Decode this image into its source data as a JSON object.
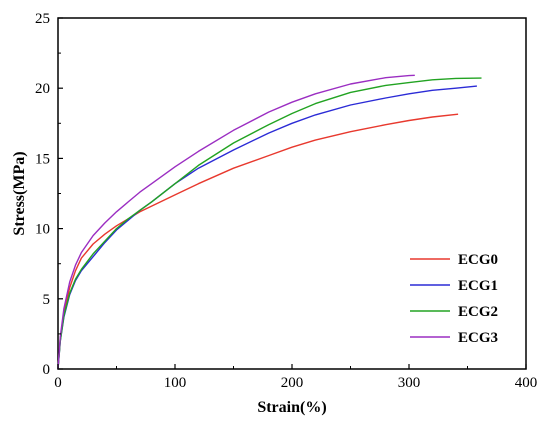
{
  "chart_data": {
    "type": "line",
    "xlabel": "Strain(%)",
    "ylabel": "Stress(MPa)",
    "xlim": [
      0,
      400
    ],
    "ylim": [
      0,
      25
    ],
    "xticks": [
      0,
      100,
      200,
      300,
      400
    ],
    "yticks": [
      0,
      5,
      10,
      15,
      20,
      25
    ],
    "grid": false,
    "legend_position": "bottom-right",
    "series": [
      {
        "name": "ECG0",
        "color": "#e8392e",
        "x": [
          0,
          2,
          5,
          10,
          15,
          20,
          30,
          40,
          50,
          60,
          70,
          80,
          100,
          120,
          150,
          180,
          200,
          220,
          250,
          280,
          300,
          320,
          342
        ],
        "y": [
          0,
          2.2,
          4.0,
          5.8,
          7.0,
          7.9,
          8.9,
          9.6,
          10.2,
          10.7,
          11.2,
          11.6,
          12.4,
          13.2,
          14.3,
          15.2,
          15.8,
          16.3,
          16.9,
          17.4,
          17.7,
          17.95,
          18.15
        ]
      },
      {
        "name": "ECG1",
        "color": "#2b2bd6",
        "x": [
          0,
          2,
          5,
          10,
          15,
          20,
          30,
          40,
          50,
          60,
          70,
          80,
          100,
          120,
          150,
          180,
          200,
          220,
          250,
          280,
          300,
          320,
          340,
          358
        ],
        "y": [
          0,
          2.0,
          3.7,
          5.3,
          6.3,
          7.0,
          8.0,
          9.0,
          9.9,
          10.6,
          11.3,
          11.9,
          13.2,
          14.3,
          15.6,
          16.8,
          17.5,
          18.1,
          18.8,
          19.3,
          19.6,
          19.85,
          20.0,
          20.15
        ]
      },
      {
        "name": "ECG2",
        "color": "#22a322",
        "x": [
          0,
          2,
          5,
          10,
          15,
          20,
          30,
          40,
          50,
          60,
          70,
          80,
          100,
          120,
          150,
          180,
          200,
          220,
          250,
          280,
          300,
          320,
          340,
          362
        ],
        "y": [
          0,
          2.0,
          3.8,
          5.4,
          6.4,
          7.1,
          8.2,
          9.1,
          10.0,
          10.7,
          11.3,
          11.9,
          13.2,
          14.5,
          16.1,
          17.4,
          18.2,
          18.9,
          19.7,
          20.2,
          20.4,
          20.6,
          20.7,
          20.72
        ]
      },
      {
        "name": "ECG3",
        "color": "#9b2ec2",
        "x": [
          0,
          2,
          5,
          10,
          15,
          20,
          30,
          40,
          50,
          60,
          70,
          80,
          100,
          120,
          150,
          180,
          200,
          220,
          250,
          280,
          300,
          305
        ],
        "y": [
          0,
          2.3,
          4.3,
          6.2,
          7.4,
          8.3,
          9.5,
          10.4,
          11.2,
          11.9,
          12.6,
          13.2,
          14.4,
          15.5,
          17.0,
          18.3,
          19.0,
          19.6,
          20.3,
          20.75,
          20.9,
          20.92
        ]
      }
    ]
  }
}
